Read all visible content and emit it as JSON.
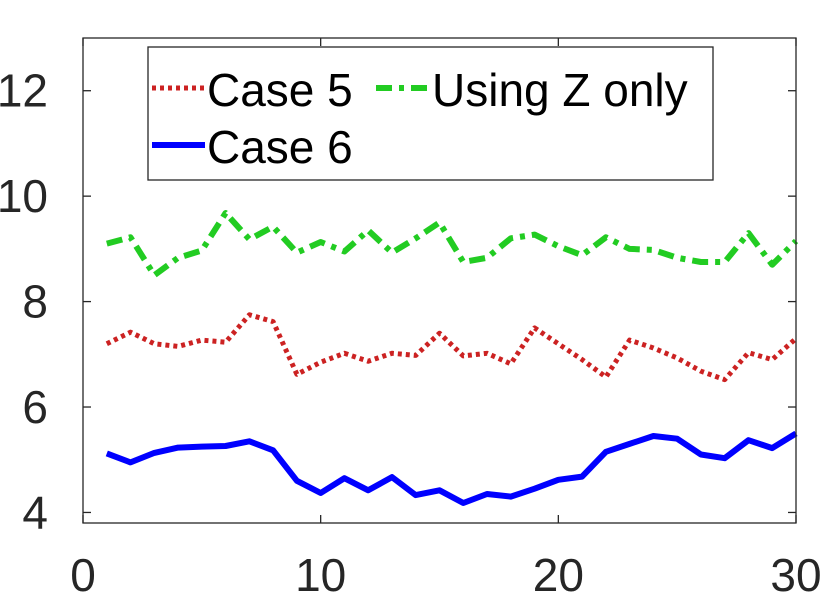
{
  "chart_data": {
    "type": "line",
    "title": "",
    "xlabel": "",
    "ylabel": "",
    "xlim": [
      0,
      30
    ],
    "ylim": [
      3.8,
      13
    ],
    "xticks": [
      0,
      10,
      20,
      30
    ],
    "yticks": [
      4,
      6,
      8,
      10,
      12
    ],
    "grid": false,
    "legend_position": "top",
    "x": [
      1,
      2,
      3,
      4,
      5,
      6,
      7,
      8,
      9,
      10,
      11,
      12,
      13,
      14,
      15,
      16,
      17,
      18,
      19,
      20,
      21,
      22,
      23,
      24,
      25,
      26,
      27,
      28,
      29,
      30
    ],
    "series": [
      {
        "name": "Case 5",
        "color": "#cc2222",
        "style": "dotted",
        "values": [
          7.2,
          7.42,
          7.2,
          7.15,
          7.27,
          7.23,
          7.75,
          7.62,
          6.62,
          6.85,
          7.02,
          6.87,
          7.02,
          6.98,
          7.4,
          6.97,
          7.02,
          6.82,
          7.5,
          7.2,
          6.9,
          6.57,
          7.27,
          7.12,
          6.93,
          6.68,
          6.52,
          7.03,
          6.9,
          7.3
        ]
      },
      {
        "name": "Using Z only",
        "color": "#22cc22",
        "style": "dashdot",
        "values": [
          9.1,
          9.22,
          8.5,
          8.83,
          8.97,
          9.68,
          9.18,
          9.42,
          8.93,
          9.13,
          8.95,
          9.35,
          8.93,
          9.2,
          9.5,
          8.75,
          8.83,
          9.2,
          9.27,
          9.05,
          8.88,
          9.22,
          9.0,
          8.98,
          8.83,
          8.75,
          8.75,
          9.3,
          8.7,
          9.15
        ]
      },
      {
        "name": "Case 6",
        "color": "#0000ff",
        "style": "solid",
        "values": [
          5.12,
          4.95,
          5.13,
          5.23,
          5.25,
          5.26,
          5.35,
          5.18,
          4.6,
          4.37,
          4.65,
          4.42,
          4.67,
          4.33,
          4.42,
          4.18,
          4.35,
          4.3,
          4.45,
          4.62,
          4.68,
          5.15,
          5.3,
          5.45,
          5.4,
          5.1,
          5.03,
          5.37,
          5.22,
          5.5
        ]
      }
    ],
    "legend": {
      "columns": 2,
      "entries": [
        "Case 5",
        "Using Z only",
        "Case 6"
      ]
    }
  }
}
